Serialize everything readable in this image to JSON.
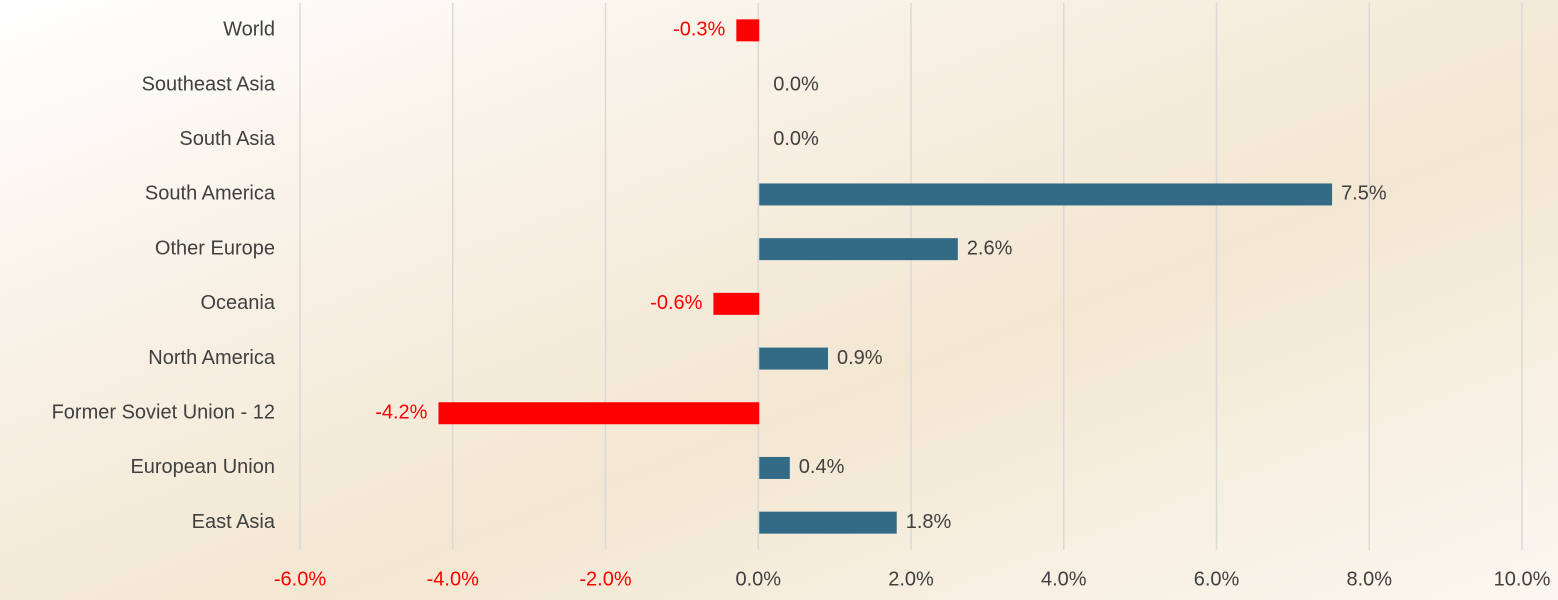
{
  "chart_data": {
    "type": "bar",
    "orientation": "horizontal",
    "categories": [
      "World",
      "Southeast Asia",
      "South Asia",
      "South America",
      "Other Europe",
      "Oceania",
      "North America",
      "Former Soviet Union - 12",
      "European Union",
      "East Asia"
    ],
    "values": [
      -0.3,
      0.0,
      0.0,
      7.5,
      2.6,
      -0.6,
      0.9,
      -4.2,
      0.4,
      1.8
    ],
    "value_labels": [
      "-0.3%",
      "0.0%",
      "0.0%",
      "7.5%",
      "2.6%",
      "-0.6%",
      "0.9%",
      "-4.2%",
      "0.4%",
      "1.8%"
    ],
    "colors": {
      "positive": "#336b87",
      "negative": "#ff0000"
    },
    "xlim": [
      -6,
      10
    ],
    "xticks": [
      {
        "value": -6,
        "label": "-6.0%"
      },
      {
        "value": -4,
        "label": "-4.0%"
      },
      {
        "value": -2,
        "label": "-2.0%"
      },
      {
        "value": 0,
        "label": "0.0%"
      },
      {
        "value": 2,
        "label": "2.0%"
      },
      {
        "value": 4,
        "label": "4.0%"
      },
      {
        "value": 6,
        "label": "6.0%"
      },
      {
        "value": 8,
        "label": "8.0%"
      },
      {
        "value": 10,
        "label": "10.0%"
      }
    ],
    "grid": true
  }
}
